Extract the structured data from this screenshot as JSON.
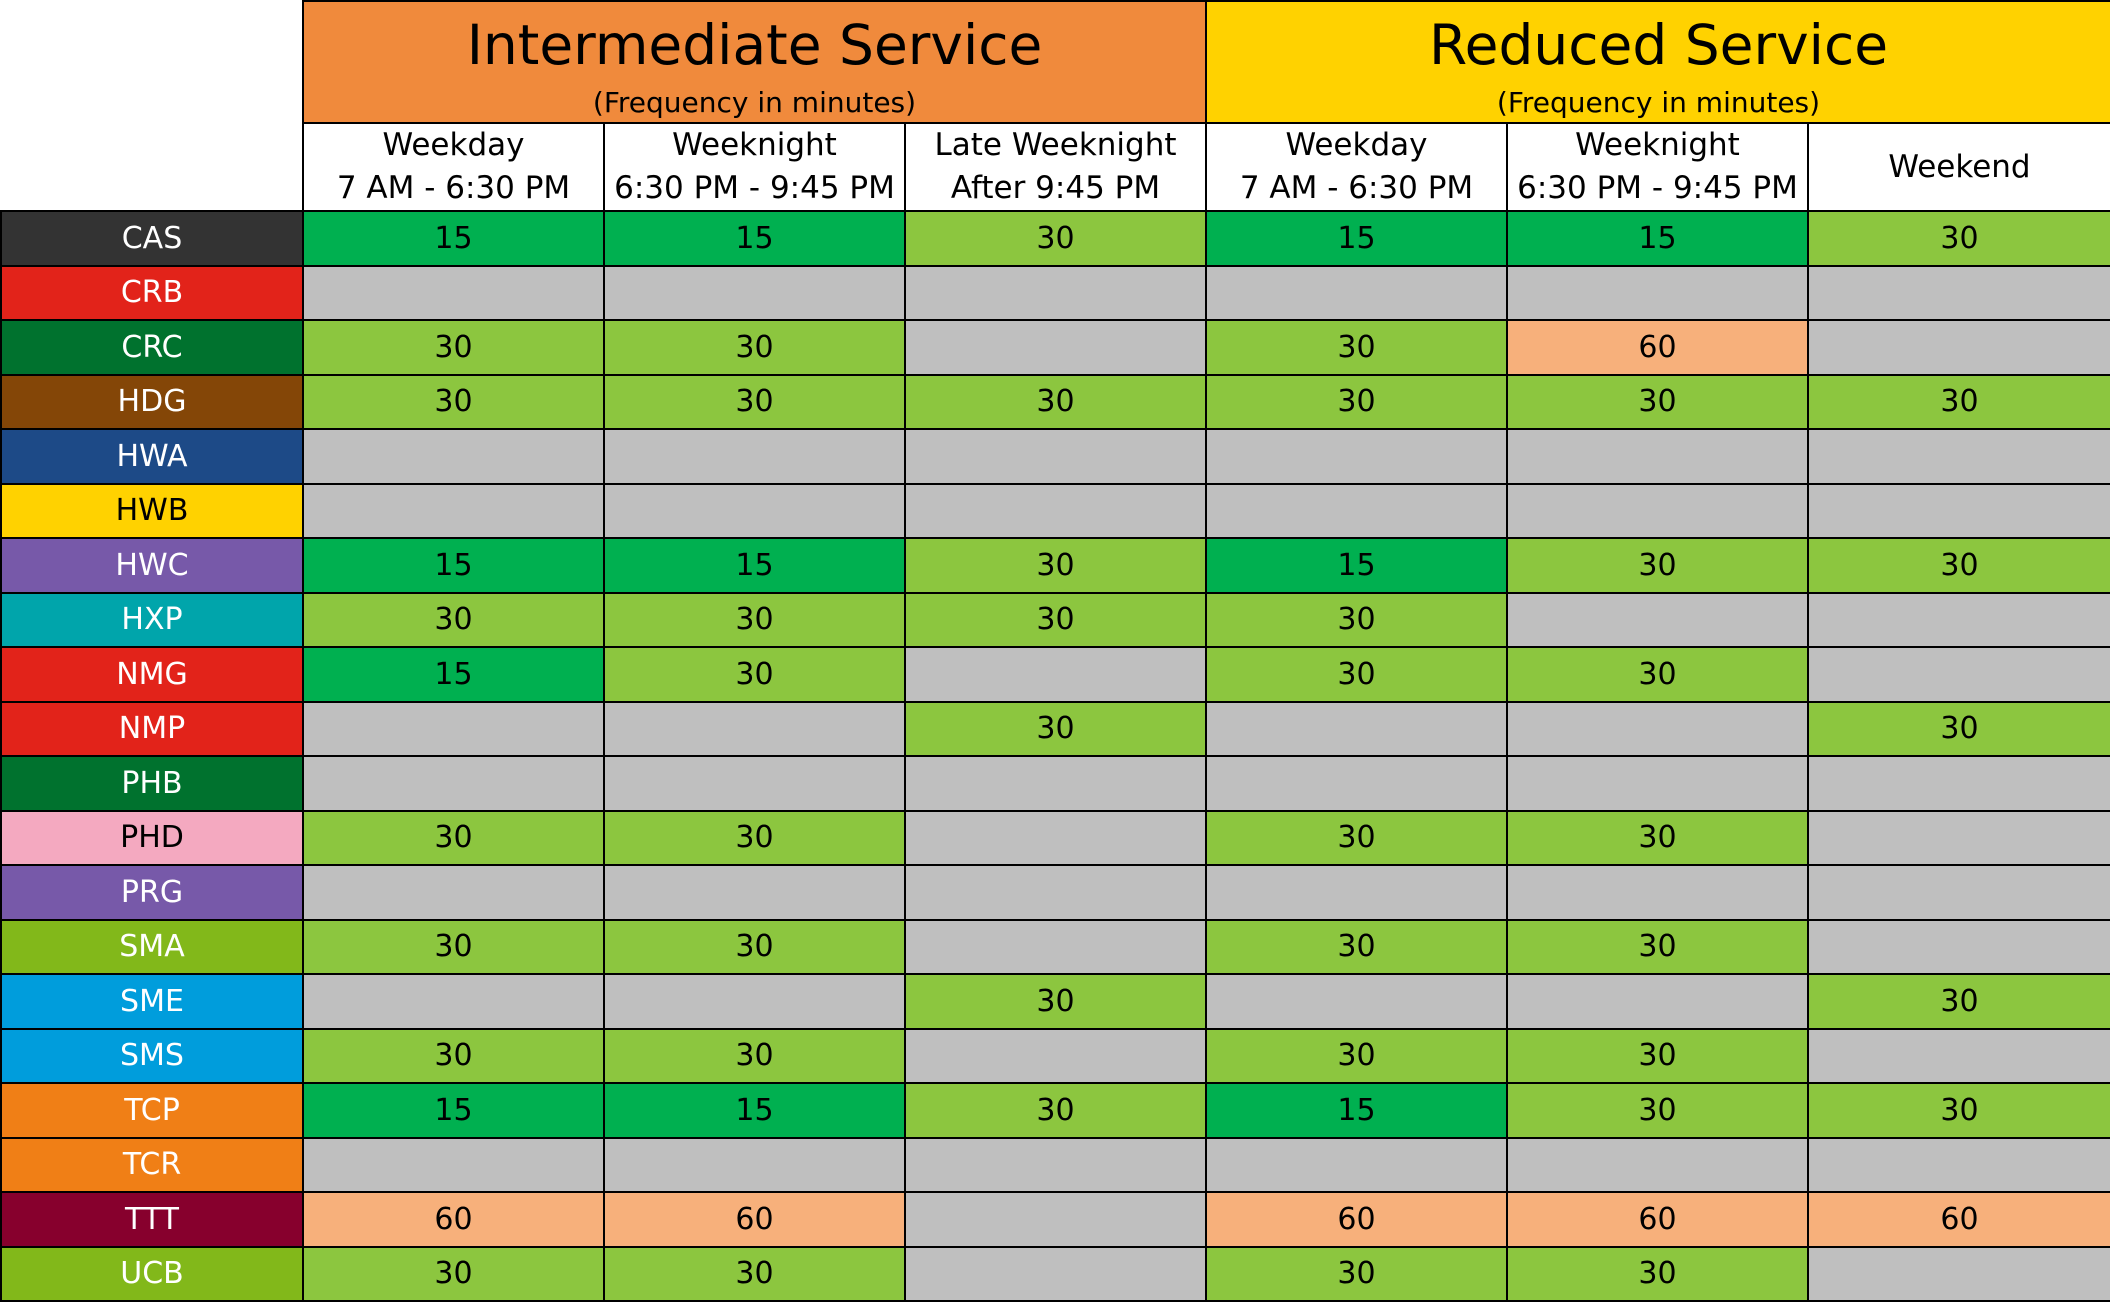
{
  "groups": [
    {
      "title": "Intermediate Service",
      "subtitle": "(Frequency in minutes)",
      "color": "#f08a3c",
      "span": 3
    },
    {
      "title": "Reduced Service",
      "subtitle": "(Frequency in minutes)",
      "color": "#ffd200",
      "span": 3
    }
  ],
  "columns": [
    {
      "line1": "Weekday",
      "line2": "7 AM - 6:30 PM"
    },
    {
      "line1": "Weeknight",
      "line2": "6:30 PM - 9:45 PM"
    },
    {
      "line1": "Late Weeknight",
      "line2": "After 9:45 PM"
    },
    {
      "line1": "Weekday",
      "line2": "7 AM - 6:30 PM"
    },
    {
      "line1": "Weeknight",
      "line2": "6:30 PM - 9:45 PM"
    },
    {
      "line1": "Weekend",
      "line2": ""
    }
  ],
  "value_colors": {
    "15": "#00b050",
    "30": "#8cc63f",
    "60": "#f7b07b",
    "none": "#bfbfbf"
  },
  "rows": [
    {
      "route": "CAS",
      "color": "#333333",
      "text_color": "#ffffff",
      "values": [
        "15",
        "15",
        "30",
        "15",
        "15",
        "30"
      ]
    },
    {
      "route": "CRB",
      "color": "#e2231a",
      "text_color": "#ffffff",
      "values": [
        "",
        "",
        "",
        "",
        "",
        ""
      ]
    },
    {
      "route": "CRC",
      "color": "#00722e",
      "text_color": "#ffffff",
      "values": [
        "30",
        "30",
        "",
        "30",
        "60",
        ""
      ]
    },
    {
      "route": "HDG",
      "color": "#844607",
      "text_color": "#ffffff",
      "values": [
        "30",
        "30",
        "30",
        "30",
        "30",
        "30"
      ]
    },
    {
      "route": "HWA",
      "color": "#1d4a87",
      "text_color": "#ffffff",
      "values": [
        "",
        "",
        "",
        "",
        "",
        ""
      ]
    },
    {
      "route": "HWB",
      "color": "#ffd200",
      "text_color": "#000000",
      "values": [
        "",
        "",
        "",
        "",
        "",
        ""
      ]
    },
    {
      "route": "HWC",
      "color": "#7759a9",
      "text_color": "#ffffff",
      "values": [
        "15",
        "15",
        "30",
        "15",
        "30",
        "30"
      ]
    },
    {
      "route": "HXP",
      "color": "#00a5ab",
      "text_color": "#ffffff",
      "values": [
        "30",
        "30",
        "30",
        "30",
        "",
        ""
      ]
    },
    {
      "route": "NMG",
      "color": "#e2231a",
      "text_color": "#ffffff",
      "values": [
        "15",
        "30",
        "",
        "30",
        "30",
        ""
      ]
    },
    {
      "route": "NMP",
      "color": "#e2231a",
      "text_color": "#ffffff",
      "values": [
        "",
        "",
        "30",
        "",
        "",
        "30"
      ]
    },
    {
      "route": "PHB",
      "color": "#00722e",
      "text_color": "#ffffff",
      "values": [
        "",
        "",
        "",
        "",
        "",
        ""
      ]
    },
    {
      "route": "PHD",
      "color": "#f4a9c0",
      "text_color": "#000000",
      "values": [
        "30",
        "30",
        "",
        "30",
        "30",
        ""
      ]
    },
    {
      "route": "PRG",
      "color": "#7759a9",
      "text_color": "#ffffff",
      "values": [
        "",
        "",
        "",
        "",
        "",
        ""
      ]
    },
    {
      "route": "SMA",
      "color": "#82b81a",
      "text_color": "#ffffff",
      "values": [
        "30",
        "30",
        "",
        "30",
        "30",
        ""
      ]
    },
    {
      "route": "SME",
      "color": "#009ddc",
      "text_color": "#ffffff",
      "values": [
        "",
        "",
        "30",
        "",
        "",
        "30"
      ]
    },
    {
      "route": "SMS",
      "color": "#009ddc",
      "text_color": "#ffffff",
      "values": [
        "30",
        "30",
        "",
        "30",
        "30",
        ""
      ]
    },
    {
      "route": "TCP",
      "color": "#f07f16",
      "text_color": "#ffffff",
      "values": [
        "15",
        "15",
        "30",
        "15",
        "30",
        "30"
      ]
    },
    {
      "route": "TCR",
      "color": "#f07f16",
      "text_color": "#ffffff",
      "values": [
        "",
        "",
        "",
        "",
        "",
        ""
      ]
    },
    {
      "route": "TTT",
      "color": "#87002d",
      "text_color": "#ffffff",
      "values": [
        "60",
        "60",
        "",
        "60",
        "60",
        "60"
      ]
    },
    {
      "route": "UCB",
      "color": "#82b81a",
      "text_color": "#ffffff",
      "values": [
        "30",
        "30",
        "",
        "30",
        "30",
        ""
      ]
    }
  ]
}
